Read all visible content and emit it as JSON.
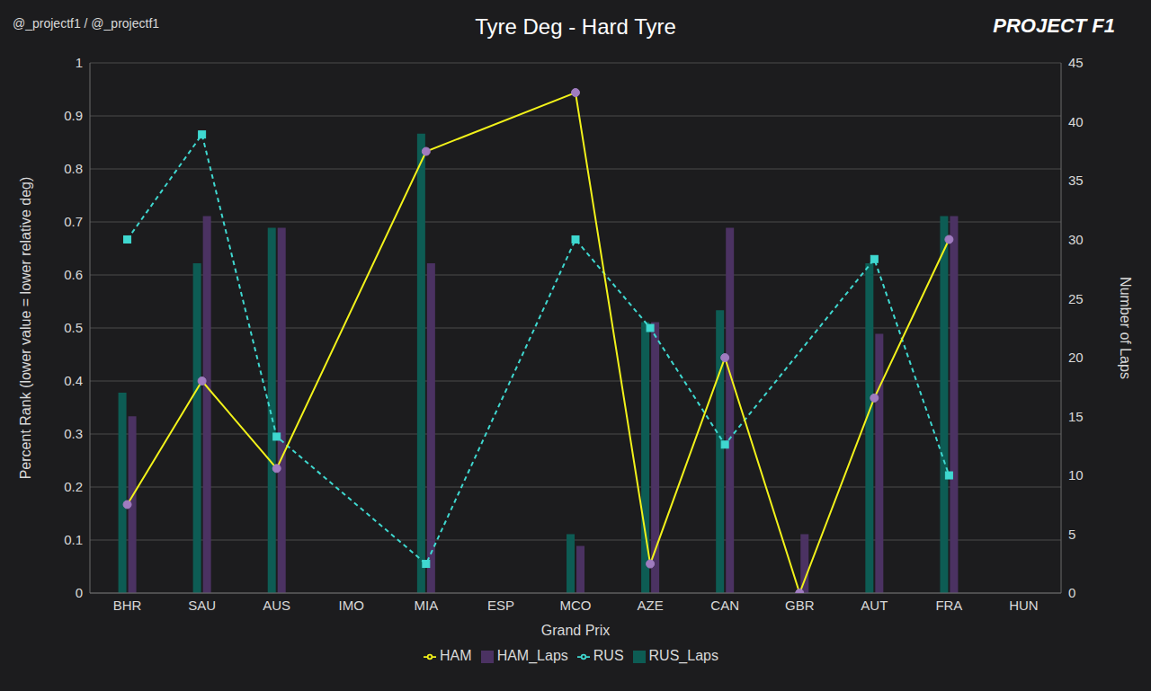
{
  "chart_data": {
    "type": "combo",
    "title": "Tyre Deg - Hard Tyre",
    "annotations": [
      "@_projectf1 / @_projectf1",
      "PROJECT F1"
    ],
    "xlabel": "Grand Prix",
    "ylabel": "Percent Rank (lower value = lower relative deg)",
    "y2label": "Number of Laps",
    "categories": [
      "BHR",
      "SAU",
      "AUS",
      "IMO",
      "MIA",
      "ESP",
      "MCO",
      "AZE",
      "CAN",
      "GBR",
      "AUT",
      "FRA",
      "HUN"
    ],
    "ylim": [
      0,
      1
    ],
    "yticks": [
      0,
      0.1,
      0.2,
      0.3,
      0.4,
      0.5,
      0.6,
      0.7,
      0.8,
      0.9,
      1
    ],
    "y2lim": [
      0,
      45
    ],
    "y2ticks": [
      0,
      5,
      10,
      15,
      20,
      25,
      30,
      35,
      40,
      45
    ],
    "grid": true,
    "legend": "bottom",
    "series": [
      {
        "name": "RUS_Laps",
        "type": "bar",
        "axis": "y2",
        "color": "#0d5c54",
        "values": [
          17,
          28,
          31,
          null,
          39,
          null,
          5,
          23,
          24,
          null,
          28,
          32,
          null
        ]
      },
      {
        "name": "HAM_Laps",
        "type": "bar",
        "axis": "y2",
        "color": "#4b3262",
        "values": [
          15,
          32,
          31,
          null,
          28,
          null,
          4,
          23,
          31,
          5,
          22,
          32,
          null
        ]
      },
      {
        "name": "RUS",
        "type": "line",
        "color": "#3fd8d0",
        "marker": "square",
        "line_style": "dashed",
        "values": [
          0.667,
          0.865,
          0.295,
          null,
          0.055,
          null,
          0.667,
          0.5,
          0.28,
          null,
          0.63,
          0.222,
          null
        ]
      },
      {
        "name": "HAM",
        "type": "line",
        "color": "#f2f21a",
        "marker": "circle",
        "line_style": "solid",
        "values": [
          0.167,
          0.4,
          0.235,
          null,
          0.833,
          null,
          0.944,
          0.055,
          0.444,
          0,
          0.368,
          0.667,
          null
        ]
      }
    ]
  }
}
